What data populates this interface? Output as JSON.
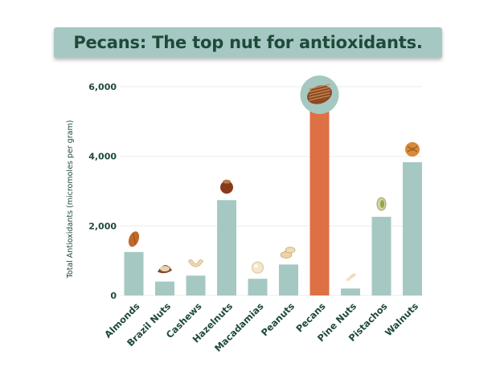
{
  "header": {
    "title": "Pecans: The top nut for antioxidants."
  },
  "colors": {
    "bar": "#a6c8c2",
    "highlight": "#dd7045",
    "text": "#1f4a3b",
    "grid": "#ececec"
  },
  "chart_data": {
    "type": "bar",
    "title": "Pecans: The top nut for antioxidants.",
    "xlabel": "",
    "ylabel": "Total Antioxidants (micromoles per gram)",
    "ylim": [
      0,
      6000
    ],
    "yticks": [
      0,
      2000,
      4000,
      6000
    ],
    "ytick_labels": [
      "0",
      "2,000",
      "4,000",
      "6,000"
    ],
    "grid": true,
    "highlight": "Pecans",
    "categories": [
      "Almonds",
      "Brazil Nuts",
      "Cashews",
      "Hazelnuts",
      "Macadamias",
      "Peanuts",
      "Pecans",
      "Pine Nuts",
      "Pistachos",
      "Walnuts"
    ],
    "values": [
      1250,
      400,
      570,
      2740,
      480,
      890,
      5400,
      200,
      2260,
      3830
    ],
    "icons": [
      "almond-icon",
      "brazil-nut-icon",
      "cashew-icon",
      "hazelnut-icon",
      "macadamia-icon",
      "peanut-icon",
      "pecan-icon",
      "pine-nut-icon",
      "pistachio-icon",
      "walnut-icon"
    ]
  }
}
